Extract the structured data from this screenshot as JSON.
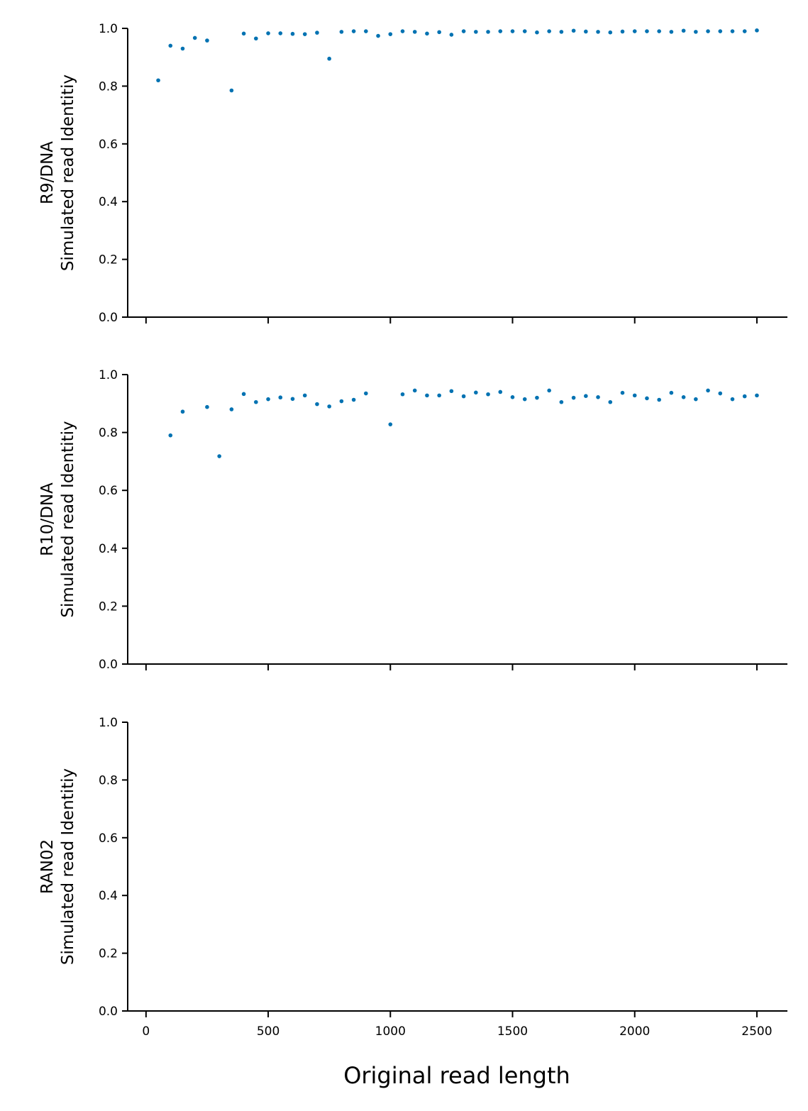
{
  "chart_data": [
    {
      "type": "scatter",
      "ylabel_lines": [
        "R9/DNA",
        "Simulated read Identitiy"
      ],
      "xlim": [
        -75,
        2625
      ],
      "ylim": [
        0,
        1
      ],
      "yticks": [
        "0.0",
        "0.2",
        "0.4",
        "0.6",
        "0.8",
        "1.0"
      ],
      "xticks_labels_shown": false,
      "grid": false,
      "x": [
        50,
        100,
        150,
        200,
        250,
        350,
        400,
        450,
        500,
        550,
        600,
        650,
        700,
        750,
        800,
        850,
        900,
        950,
        1000,
        1050,
        1100,
        1150,
        1200,
        1250,
        1300,
        1350,
        1400,
        1450,
        1500,
        1550,
        1600,
        1650,
        1700,
        1750,
        1800,
        1850,
        1900,
        1950,
        2000,
        2050,
        2100,
        2150,
        2200,
        2250,
        2300,
        2350,
        2400,
        2450,
        2500
      ],
      "y": [
        0.82,
        0.94,
        0.93,
        0.967,
        0.958,
        0.785,
        0.982,
        0.965,
        0.983,
        0.983,
        0.981,
        0.98,
        0.985,
        0.895,
        0.988,
        0.99,
        0.99,
        0.974,
        0.98,
        0.99,
        0.988,
        0.982,
        0.987,
        0.978,
        0.99,
        0.988,
        0.988,
        0.99,
        0.99,
        0.99,
        0.986,
        0.99,
        0.988,
        0.992,
        0.989,
        0.988,
        0.986,
        0.989,
        0.99,
        0.99,
        0.99,
        0.988,
        0.992,
        0.988,
        0.99,
        0.99,
        0.99,
        0.99,
        0.993
      ]
    },
    {
      "type": "scatter",
      "ylabel_lines": [
        "R10/DNA",
        "Simulated read Identitiy"
      ],
      "xlim": [
        -75,
        2625
      ],
      "ylim": [
        0,
        1
      ],
      "yticks": [
        "0.0",
        "0.2",
        "0.4",
        "0.6",
        "0.8",
        "1.0"
      ],
      "xticks_labels_shown": false,
      "grid": false,
      "x": [
        100,
        150,
        250,
        300,
        350,
        400,
        450,
        500,
        550,
        600,
        650,
        700,
        750,
        800,
        850,
        900,
        1000,
        1050,
        1100,
        1150,
        1200,
        1250,
        1300,
        1350,
        1400,
        1450,
        1500,
        1550,
        1600,
        1650,
        1700,
        1750,
        1800,
        1850,
        1900,
        1950,
        2000,
        2050,
        2100,
        2150,
        2200,
        2250,
        2300,
        2350,
        2400,
        2450,
        2500
      ],
      "y": [
        0.79,
        0.872,
        0.888,
        0.718,
        0.88,
        0.933,
        0.905,
        0.915,
        0.921,
        0.916,
        0.928,
        0.898,
        0.89,
        0.908,
        0.913,
        0.935,
        0.828,
        0.932,
        0.945,
        0.928,
        0.928,
        0.943,
        0.925,
        0.938,
        0.932,
        0.94,
        0.922,
        0.915,
        0.92,
        0.945,
        0.905,
        0.92,
        0.926,
        0.922,
        0.905,
        0.937,
        0.928,
        0.918,
        0.913,
        0.937,
        0.922,
        0.915,
        0.945,
        0.935,
        0.915,
        0.925,
        0.928
      ]
    },
    {
      "type": "scatter",
      "ylabel_lines": [
        "RAN02",
        "Simulated read Identitiy"
      ],
      "xlabel": "Original read length",
      "xlim": [
        -75,
        2625
      ],
      "ylim": [
        0,
        1
      ],
      "yticks": [
        "0.0",
        "0.2",
        "0.4",
        "0.6",
        "0.8",
        "1.0"
      ],
      "xticks": [
        "0",
        "500",
        "1000",
        "1500",
        "2000",
        "2500"
      ],
      "xticks_labels_shown": true,
      "grid": false,
      "x": [],
      "y": []
    }
  ],
  "colors": {
    "point": "#0072b2",
    "axis": "#000000"
  }
}
